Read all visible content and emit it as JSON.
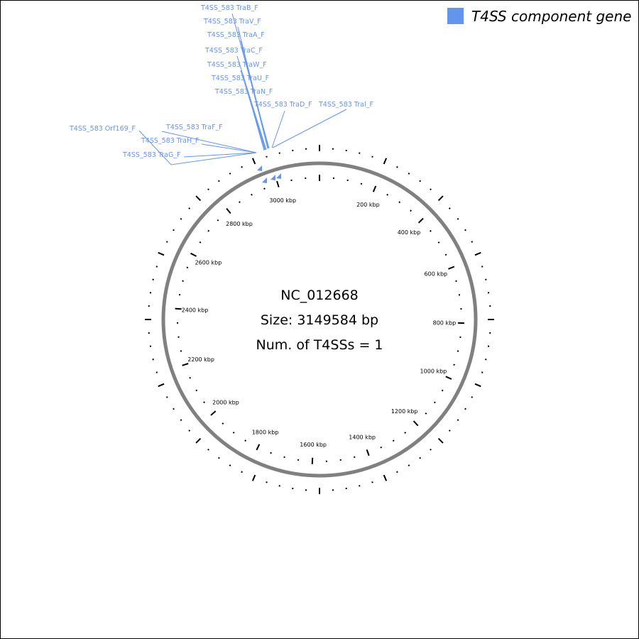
{
  "genome": {
    "accession": "NC_012668",
    "size_text": "Size: 3149584 bp",
    "t4ss_count_text": "Num. of T4SSs = 1",
    "size_bp": 3149584
  },
  "legend": {
    "label": "T4SS component gene",
    "color": "#6495ed"
  },
  "scale_labels": [
    "200 kbp",
    "400 kbp",
    "600 kbp",
    "800 kbp",
    "1000 kbp",
    "1200 kbp",
    "1400 kbp",
    "1600 kbp",
    "1800 kbp",
    "2000 kbp",
    "2200 kbp",
    "2400 kbp",
    "2600 kbp",
    "2800 kbp",
    "3000 kbp"
  ],
  "genes": [
    "T4SS_583 TraB_F",
    "T4SS_583 TraV_F",
    "T4SS_583 TraA_F",
    "T4SS_583 TraC_F",
    "T4SS_583 TraW_F",
    "T4SS_583 TraU_F",
    "T4SS_583 TraN_F",
    "T4SS_583 TraD_F",
    "T4SS_583 TraI_F",
    "T4SS_583 Orf169_F",
    "T4SS_583 TraF_F",
    "T4SS_583 TraH_F",
    "T4SS_583 TraG_F"
  ],
  "colors": {
    "ring": "#808080",
    "gene": "#6495ed"
  }
}
